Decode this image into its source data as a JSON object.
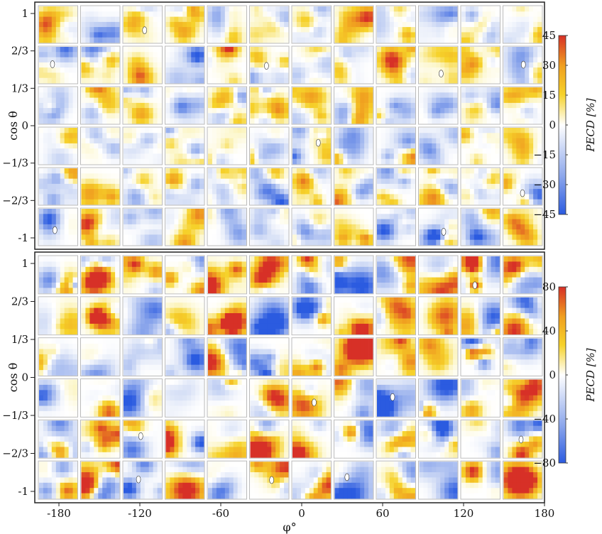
{
  "chart_data": [
    {
      "type": "heatmap",
      "panel": "top",
      "xlabel": "φ°",
      "ylabel": "cos θ",
      "x_ticks": [
        "-180",
        "-120",
        "-60",
        "0",
        "60",
        "120",
        "180"
      ],
      "x_values": [
        -180,
        -120,
        -60,
        0,
        60,
        120,
        180
      ],
      "y_ticks": [
        "1",
        "2/3",
        "1/3",
        "0",
        "−1/3",
        "−2/3",
        "-1"
      ],
      "grid_columns": 12,
      "grid_rows": 6,
      "colorbar": {
        "label": "PECD [%]",
        "range": [
          -45,
          45
        ],
        "ticks": [
          "45",
          "30",
          "15",
          "0",
          "−15",
          "−30",
          "−45"
        ],
        "tick_values": [
          45,
          30,
          15,
          0,
          -15,
          -30,
          -45
        ],
        "colormap": [
          "#2b5be0",
          "#ffffff",
          "#f6d22a",
          "#d73027"
        ]
      }
    },
    {
      "type": "heatmap",
      "panel": "bottom",
      "xlabel": "φ°",
      "ylabel": "cos θ",
      "x_ticks": [
        "-180",
        "-120",
        "-60",
        "0",
        "60",
        "120",
        "180"
      ],
      "x_values": [
        -180,
        -120,
        -60,
        0,
        60,
        120,
        180
      ],
      "y_ticks": [
        "1",
        "2/3",
        "1/3",
        "0",
        "−1/3",
        "−2/3",
        "-1"
      ],
      "grid_columns": 12,
      "grid_rows": 6,
      "colorbar": {
        "label": "PECD [%]",
        "range": [
          -80,
          80
        ],
        "ticks": [
          "80",
          "40",
          "0",
          "−40",
          "−80"
        ],
        "tick_values": [
          80,
          40,
          0,
          -40,
          -80
        ],
        "colormap": [
          "#2b5be0",
          "#ffffff",
          "#f6d22a",
          "#d73027"
        ]
      }
    }
  ]
}
